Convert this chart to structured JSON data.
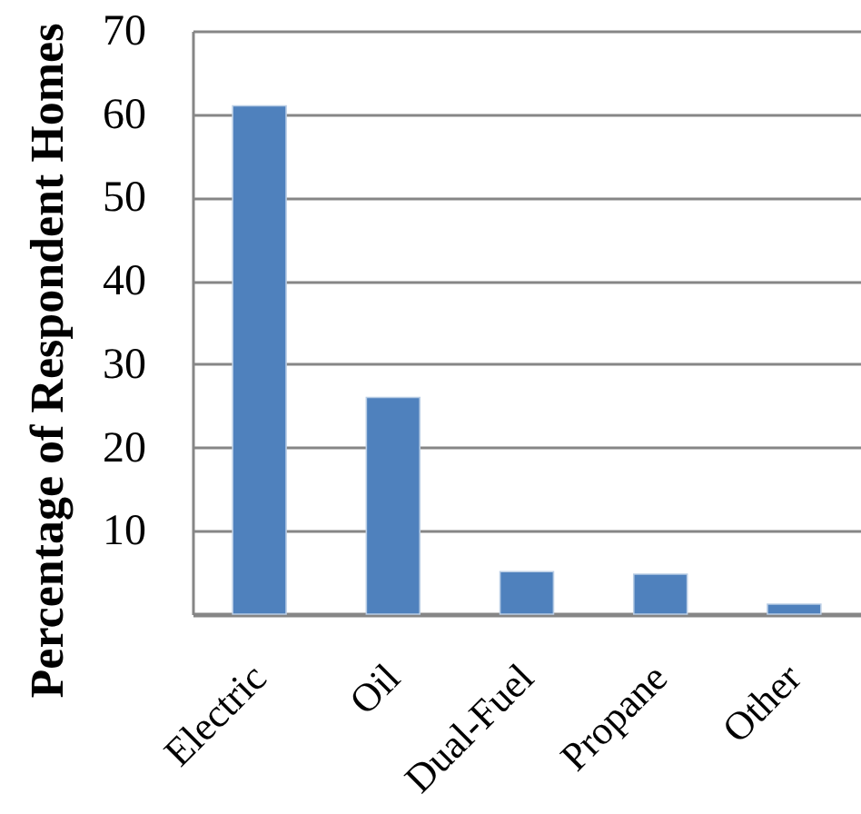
{
  "chart_data": {
    "type": "bar",
    "ylabel": "Percentage of Respondent Homes",
    "categories": [
      "Electric",
      "Oil",
      "Dual-Fuel",
      "Propane",
      "Other"
    ],
    "values": [
      61,
      26,
      5.1,
      4.8,
      1.2
    ],
    "color": "#4f81bd",
    "ylim": [
      0,
      70
    ],
    "yticks": [
      10,
      20,
      30,
      40,
      50,
      60,
      70
    ],
    "grid": "y"
  }
}
